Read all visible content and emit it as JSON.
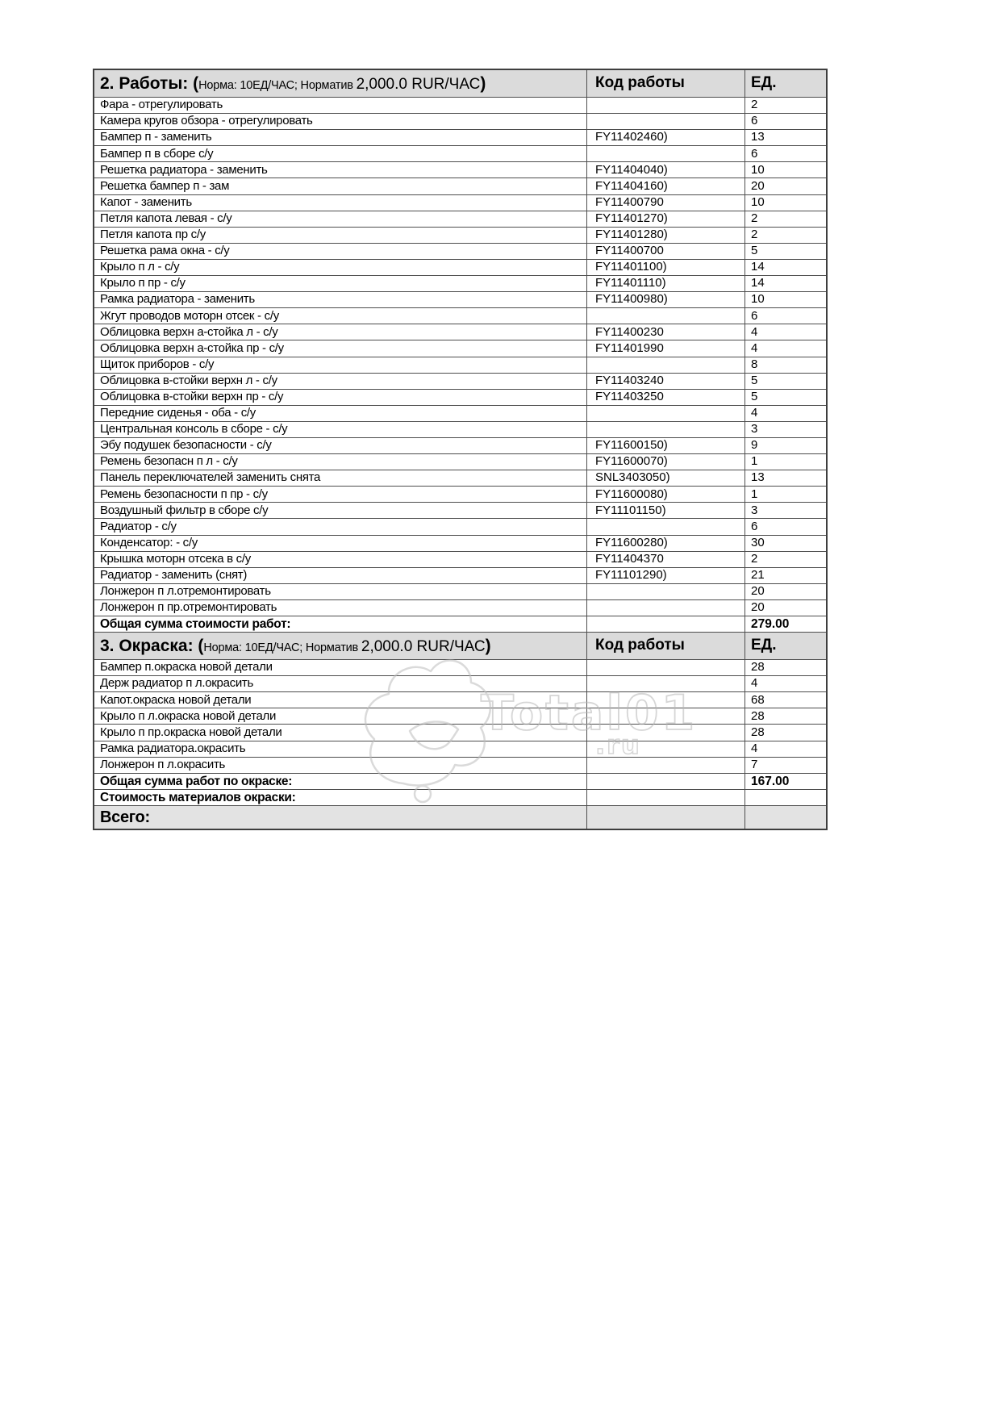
{
  "watermark": {
    "text": "Total01",
    "suffix": ".ru"
  },
  "sections": [
    {
      "title_bold": "2. Работы: (",
      "title_normal": "Норма: 10ЕД/ЧАС; Норматив ",
      "title_value": "2,000.0 RUR/ЧАС",
      "title_close": ")",
      "col_code": "Код работы",
      "col_unit": "ЕД.",
      "rows": [
        {
          "label": "Фара - отрегулировать",
          "code": "",
          "unit": "2",
          "style": "normal"
        },
        {
          "label": "Камера кругов обзора - отрегулировать",
          "code": "",
          "unit": "6",
          "style": "normal"
        },
        {
          "label": "Бампер п - заменить",
          "code": "FY11402460)",
          "unit": "13",
          "style": "normal"
        },
        {
          "label": "Бампер п в сборе с/у",
          "code": "",
          "unit": "6",
          "style": "normal"
        },
        {
          "label": "Решетка радиатора - заменить",
          "code": "FY11404040)",
          "unit": "10",
          "style": "normal"
        },
        {
          "label": "Решетка бампер п - зам",
          "code": "FY11404160)",
          "unit": "20",
          "style": "normal"
        },
        {
          "label": "Капот - заменить",
          "code": "FY11400790",
          "unit": "10",
          "style": "normal"
        },
        {
          "label": "Петля капота левая - с/у",
          "code": "FY11401270)",
          "unit": "2",
          "style": "normal"
        },
        {
          "label": "Петля капота пр с/у",
          "code": "FY11401280)",
          "unit": "2",
          "style": "normal"
        },
        {
          "label": "Решетка рама окна - с/у",
          "code": "FY11400700",
          "unit": "5",
          "style": "normal"
        },
        {
          "label": "Крыло п л - с/у",
          "code": "FY11401100)",
          "unit": "14",
          "style": "normal"
        },
        {
          "label": "Крыло п пр - с/у",
          "code": "FY11401110)",
          "unit": "14",
          "style": "normal"
        },
        {
          "label": "Рамка радиатора  - заменить",
          "code": "FY11400980)",
          "unit": "10",
          "style": "normal"
        },
        {
          "label": "Жгут проводов моторн отсек - с/у",
          "code": "",
          "unit": "6",
          "style": "normal"
        },
        {
          "label": "Облицовка верхн а-стойка  л - с/у",
          "code": "FY11400230",
          "unit": "4",
          "style": "normal"
        },
        {
          "label": "Облицовка верхн а-стойка  пр - с/у",
          "code": "FY11401990",
          "unit": "4",
          "style": "normal"
        },
        {
          "label": "Щиток приборов - с/у",
          "code": "",
          "unit": "8",
          "style": "normal"
        },
        {
          "label": "Облицовка в-стойки верхн л - с/у",
          "code": "FY11403240",
          "unit": "5",
          "style": "normal"
        },
        {
          "label": "Облицовка в-стойки верхн пр - с/у",
          "code": "FY11403250",
          "unit": "5",
          "style": "normal"
        },
        {
          "label": "Передние сиденья - оба - с/у",
          "code": "",
          "unit": "4",
          "style": "normal"
        },
        {
          "label": "Центральная консоль в сборе - с/у",
          "code": "",
          "unit": "3",
          "style": "normal"
        },
        {
          "label": "Эбу подушек безопасности - с/у",
          "code": "FY11600150)",
          "unit": "9",
          "style": "normal"
        },
        {
          "label": "Ремень безопасн п л - с/у",
          "code": "FY11600070)",
          "unit": "1",
          "style": "normal"
        },
        {
          "label": "Панель переключателей заменить снята",
          "code": "SNL3403050)",
          "unit": "13",
          "style": "normal"
        },
        {
          "label": "Ремень безопасности п пр  - с/у",
          "code": "FY11600080)",
          "unit": "1",
          "style": "normal"
        },
        {
          "label": "Воздушный фильтр в сборе с/у",
          "code": "FY11101150)",
          "unit": "3",
          "style": "normal"
        },
        {
          "label": "Радиатор - с/у",
          "code": "",
          "unit": "6",
          "style": "normal"
        },
        {
          "label": "Конденсатор: - с/у",
          "code": "FY11600280)",
          "unit": "30",
          "style": "normal"
        },
        {
          "label": "Крышка моторн отсека в с/у",
          "code": "FY11404370",
          "unit": "2",
          "style": "normal"
        },
        {
          "label": "Радиатор - заменить  (снят)",
          "code": "FY11101290)",
          "unit": "21",
          "style": "normal"
        },
        {
          "label": "Лонжерон п л.отремонтировать",
          "code": "",
          "unit": "20",
          "style": "normal"
        },
        {
          "label": "Лонжерон п пр.отремонтировать",
          "code": "",
          "unit": "20",
          "style": "normal"
        },
        {
          "label": "Общая сумма стоимости работ:",
          "code": "",
          "unit": "279.00",
          "style": "bold"
        }
      ]
    },
    {
      "title_bold": "3. Окраска: (",
      "title_normal": "Норма: 10ЕД/ЧАС; Норматив ",
      "title_value": "2,000.0 RUR/ЧАС",
      "title_close": ")",
      "col_code": "Код работы",
      "col_unit": "ЕД.",
      "rows": [
        {
          "label": "Бампер п.окраска новой детали",
          "code": "",
          "unit": "28",
          "style": "normal"
        },
        {
          "label": "Держ радиатор п л.окрасить",
          "code": "",
          "unit": "4",
          "style": "normal"
        },
        {
          "label": "Капот.окраска новой детали",
          "code": "",
          "unit": "68",
          "style": "normal"
        },
        {
          "label": "Крыло п л.окраска новой детали",
          "code": "",
          "unit": "28",
          "style": "normal"
        },
        {
          "label": "Крыло п пр.окраска новой детали",
          "code": "",
          "unit": "28",
          "style": "normal"
        },
        {
          "label": "Рамка радиатора.окрасить",
          "code": "",
          "unit": "4",
          "style": "normal"
        },
        {
          "label": "Лонжерон п л.окрасить",
          "code": "",
          "unit": "7",
          "style": "normal"
        },
        {
          "label": "Общая сумма работ по окраске:",
          "code": "",
          "unit": "167.00",
          "style": "bold"
        },
        {
          "label": "Стоимость материалов окраски:",
          "code": "",
          "unit": "",
          "style": "bold"
        },
        {
          "label": "Всего:",
          "code": "",
          "unit": "",
          "style": "total"
        }
      ]
    }
  ]
}
